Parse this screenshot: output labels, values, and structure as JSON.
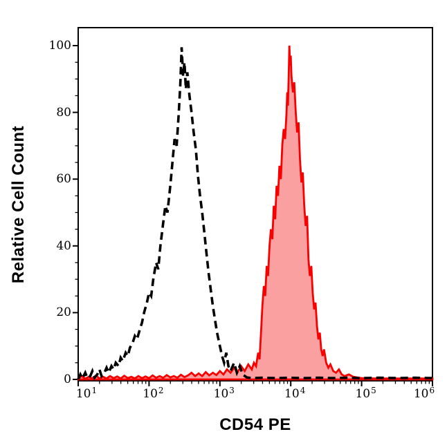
{
  "figure": {
    "xlabel": "CD54 PE",
    "ylabel": "Relative Cell Count"
  },
  "chart_data": {
    "type": "line",
    "subtype": "flow-cytometry-overlay-histogram",
    "title": "",
    "xlabel": "CD54 PE",
    "ylabel": "Relative Cell Count",
    "x_scale": "log10",
    "x_range": [
      10,
      1000000
    ],
    "x_tick_base": "10",
    "x_tick_exponents": [
      1,
      2,
      3,
      4,
      5,
      6
    ],
    "x_minor_ticks_per_decade": [
      2,
      3,
      4,
      5,
      6,
      7,
      8,
      9
    ],
    "y_range": [
      0,
      105
    ],
    "y_ticks": [
      0,
      20,
      40,
      60,
      80,
      100
    ],
    "y_minor_tick_step": 5,
    "grid": false,
    "legend_position": "none",
    "series": [
      {
        "name": "negative-control",
        "line_style": "dashed",
        "color": "#000000",
        "fill": "none",
        "peak_x_log10": 2.46,
        "peak_y": 100,
        "points_log10x_count": [
          [
            1.0,
            0
          ],
          [
            1.03,
            1.5
          ],
          [
            1.06,
            0.3
          ],
          [
            1.1,
            2
          ],
          [
            1.13,
            0.4
          ],
          [
            1.17,
            1
          ],
          [
            1.2,
            2.5
          ],
          [
            1.23,
            0.5
          ],
          [
            1.27,
            1.5
          ],
          [
            1.3,
            3
          ],
          [
            1.33,
            1
          ],
          [
            1.37,
            2
          ],
          [
            1.4,
            3.5
          ],
          [
            1.43,
            2
          ],
          [
            1.47,
            4
          ],
          [
            1.5,
            3
          ],
          [
            1.53,
            5
          ],
          [
            1.57,
            4
          ],
          [
            1.6,
            6.5
          ],
          [
            1.63,
            5.5
          ],
          [
            1.67,
            8
          ],
          [
            1.7,
            7
          ],
          [
            1.73,
            9.5
          ],
          [
            1.77,
            11
          ],
          [
            1.8,
            13
          ],
          [
            1.83,
            12
          ],
          [
            1.87,
            15
          ],
          [
            1.9,
            17
          ],
          [
            1.93,
            20
          ],
          [
            1.97,
            23
          ],
          [
            2.0,
            26
          ],
          [
            2.03,
            25
          ],
          [
            2.06,
            30
          ],
          [
            2.1,
            35
          ],
          [
            2.13,
            33
          ],
          [
            2.16,
            40
          ],
          [
            2.2,
            47
          ],
          [
            2.23,
            52
          ],
          [
            2.26,
            50
          ],
          [
            2.3,
            58
          ],
          [
            2.33,
            65
          ],
          [
            2.36,
            72
          ],
          [
            2.39,
            70
          ],
          [
            2.42,
            80
          ],
          [
            2.44,
            88
          ],
          [
            2.46,
            99.5
          ],
          [
            2.48,
            91
          ],
          [
            2.5,
            95
          ],
          [
            2.52,
            87
          ],
          [
            2.54,
            92
          ],
          [
            2.57,
            85
          ],
          [
            2.6,
            80
          ],
          [
            2.63,
            74
          ],
          [
            2.66,
            69
          ],
          [
            2.69,
            61
          ],
          [
            2.72,
            55
          ],
          [
            2.75,
            50
          ],
          [
            2.78,
            44
          ],
          [
            2.81,
            38
          ],
          [
            2.84,
            32
          ],
          [
            2.87,
            27
          ],
          [
            2.9,
            22
          ],
          [
            2.93,
            18
          ],
          [
            2.96,
            14
          ],
          [
            3.0,
            10
          ],
          [
            3.03,
            7
          ],
          [
            3.06,
            5
          ],
          [
            3.09,
            8
          ],
          [
            3.12,
            4
          ],
          [
            3.15,
            2.5
          ],
          [
            3.2,
            5
          ],
          [
            3.24,
            2
          ],
          [
            3.28,
            4
          ],
          [
            3.32,
            1.5
          ],
          [
            3.38,
            0.6
          ],
          [
            3.45,
            0.4
          ],
          [
            3.6,
            0.5
          ],
          [
            3.8,
            0.4
          ],
          [
            4.0,
            0.5
          ],
          [
            4.2,
            0.4
          ],
          [
            4.4,
            0.5
          ],
          [
            4.6,
            0.4
          ],
          [
            4.8,
            0.5
          ],
          [
            5.0,
            0.4
          ],
          [
            5.25,
            0.5
          ],
          [
            5.5,
            0.4
          ],
          [
            5.75,
            0.5
          ],
          [
            6.0,
            0.4
          ]
        ]
      },
      {
        "name": "cd54-pe-stained",
        "line_style": "solid",
        "color": "#f80000",
        "fill": "#fba0a0",
        "peak_x_log10": 3.98,
        "peak_y": 100,
        "points_log10x_count": [
          [
            1.0,
            0.3
          ],
          [
            1.05,
            1
          ],
          [
            1.1,
            0.2
          ],
          [
            1.15,
            0.8
          ],
          [
            1.2,
            0.3
          ],
          [
            1.25,
            1.2
          ],
          [
            1.3,
            0.3
          ],
          [
            1.35,
            0.8
          ],
          [
            1.4,
            0.3
          ],
          [
            1.45,
            1
          ],
          [
            1.5,
            0.4
          ],
          [
            1.55,
            0.9
          ],
          [
            1.6,
            0.3
          ],
          [
            1.65,
            1.1
          ],
          [
            1.7,
            0.4
          ],
          [
            1.75,
            0.8
          ],
          [
            1.8,
            0.3
          ],
          [
            1.85,
            1
          ],
          [
            1.9,
            0.4
          ],
          [
            1.95,
            0.9
          ],
          [
            2.0,
            0.4
          ],
          [
            2.05,
            1.2
          ],
          [
            2.1,
            0.5
          ],
          [
            2.15,
            1
          ],
          [
            2.2,
            0.5
          ],
          [
            2.25,
            1.3
          ],
          [
            2.3,
            0.6
          ],
          [
            2.35,
            1
          ],
          [
            2.4,
            0.5
          ],
          [
            2.45,
            1.4
          ],
          [
            2.5,
            0.7
          ],
          [
            2.55,
            1.2
          ],
          [
            2.6,
            2
          ],
          [
            2.65,
            1
          ],
          [
            2.7,
            1.8
          ],
          [
            2.75,
            1
          ],
          [
            2.8,
            2.2
          ],
          [
            2.85,
            1.2
          ],
          [
            2.9,
            2
          ],
          [
            2.95,
            1.3
          ],
          [
            3.0,
            2.5
          ],
          [
            3.05,
            1.5
          ],
          [
            3.1,
            3
          ],
          [
            3.15,
            2
          ],
          [
            3.2,
            3.5
          ],
          [
            3.25,
            2.2
          ],
          [
            3.3,
            4
          ],
          [
            3.35,
            2.5
          ],
          [
            3.4,
            4.5
          ],
          [
            3.45,
            3
          ],
          [
            3.48,
            5
          ],
          [
            3.51,
            4
          ],
          [
            3.54,
            8
          ],
          [
            3.56,
            6
          ],
          [
            3.58,
            14
          ],
          [
            3.6,
            22
          ],
          [
            3.62,
            28
          ],
          [
            3.64,
            25
          ],
          [
            3.66,
            34
          ],
          [
            3.68,
            31
          ],
          [
            3.7,
            40
          ],
          [
            3.72,
            45
          ],
          [
            3.74,
            42
          ],
          [
            3.76,
            52
          ],
          [
            3.78,
            48
          ],
          [
            3.8,
            58
          ],
          [
            3.82,
            55
          ],
          [
            3.84,
            64
          ],
          [
            3.86,
            60
          ],
          [
            3.88,
            70
          ],
          [
            3.9,
            75
          ],
          [
            3.92,
            72
          ],
          [
            3.94,
            80
          ],
          [
            3.95,
            86
          ],
          [
            3.96,
            82
          ],
          [
            3.97,
            90
          ],
          [
            3.98,
            100
          ],
          [
            3.99,
            94
          ],
          [
            4.0,
            97
          ],
          [
            4.01,
            91
          ],
          [
            4.03,
            86
          ],
          [
            4.05,
            89
          ],
          [
            4.07,
            80
          ],
          [
            4.09,
            74
          ],
          [
            4.11,
            77
          ],
          [
            4.13,
            66
          ],
          [
            4.15,
            59
          ],
          [
            4.17,
            62
          ],
          [
            4.19,
            52
          ],
          [
            4.21,
            46
          ],
          [
            4.23,
            49
          ],
          [
            4.25,
            36
          ],
          [
            4.27,
            31
          ],
          [
            4.29,
            34
          ],
          [
            4.31,
            26
          ],
          [
            4.33,
            21
          ],
          [
            4.35,
            23
          ],
          [
            4.37,
            16
          ],
          [
            4.39,
            12
          ],
          [
            4.41,
            14
          ],
          [
            4.43,
            9
          ],
          [
            4.45,
            7
          ],
          [
            4.47,
            9
          ],
          [
            4.5,
            5
          ],
          [
            4.53,
            3.5
          ],
          [
            4.56,
            4.5
          ],
          [
            4.6,
            2.5
          ],
          [
            4.64,
            2
          ],
          [
            4.68,
            3
          ],
          [
            4.72,
            1.5
          ],
          [
            4.76,
            1
          ],
          [
            4.82,
            1.5
          ],
          [
            4.88,
            0.8
          ],
          [
            5.0,
            0.4
          ],
          [
            5.2,
            0.3
          ],
          [
            5.5,
            0.3
          ],
          [
            6.0,
            0.3
          ]
        ]
      }
    ]
  },
  "colors": {
    "axis": "#000000",
    "dashed_histogram": "#000000",
    "red_histogram_stroke": "#f80000",
    "red_histogram_fill": "#fba0a0",
    "background": "#ffffff"
  }
}
